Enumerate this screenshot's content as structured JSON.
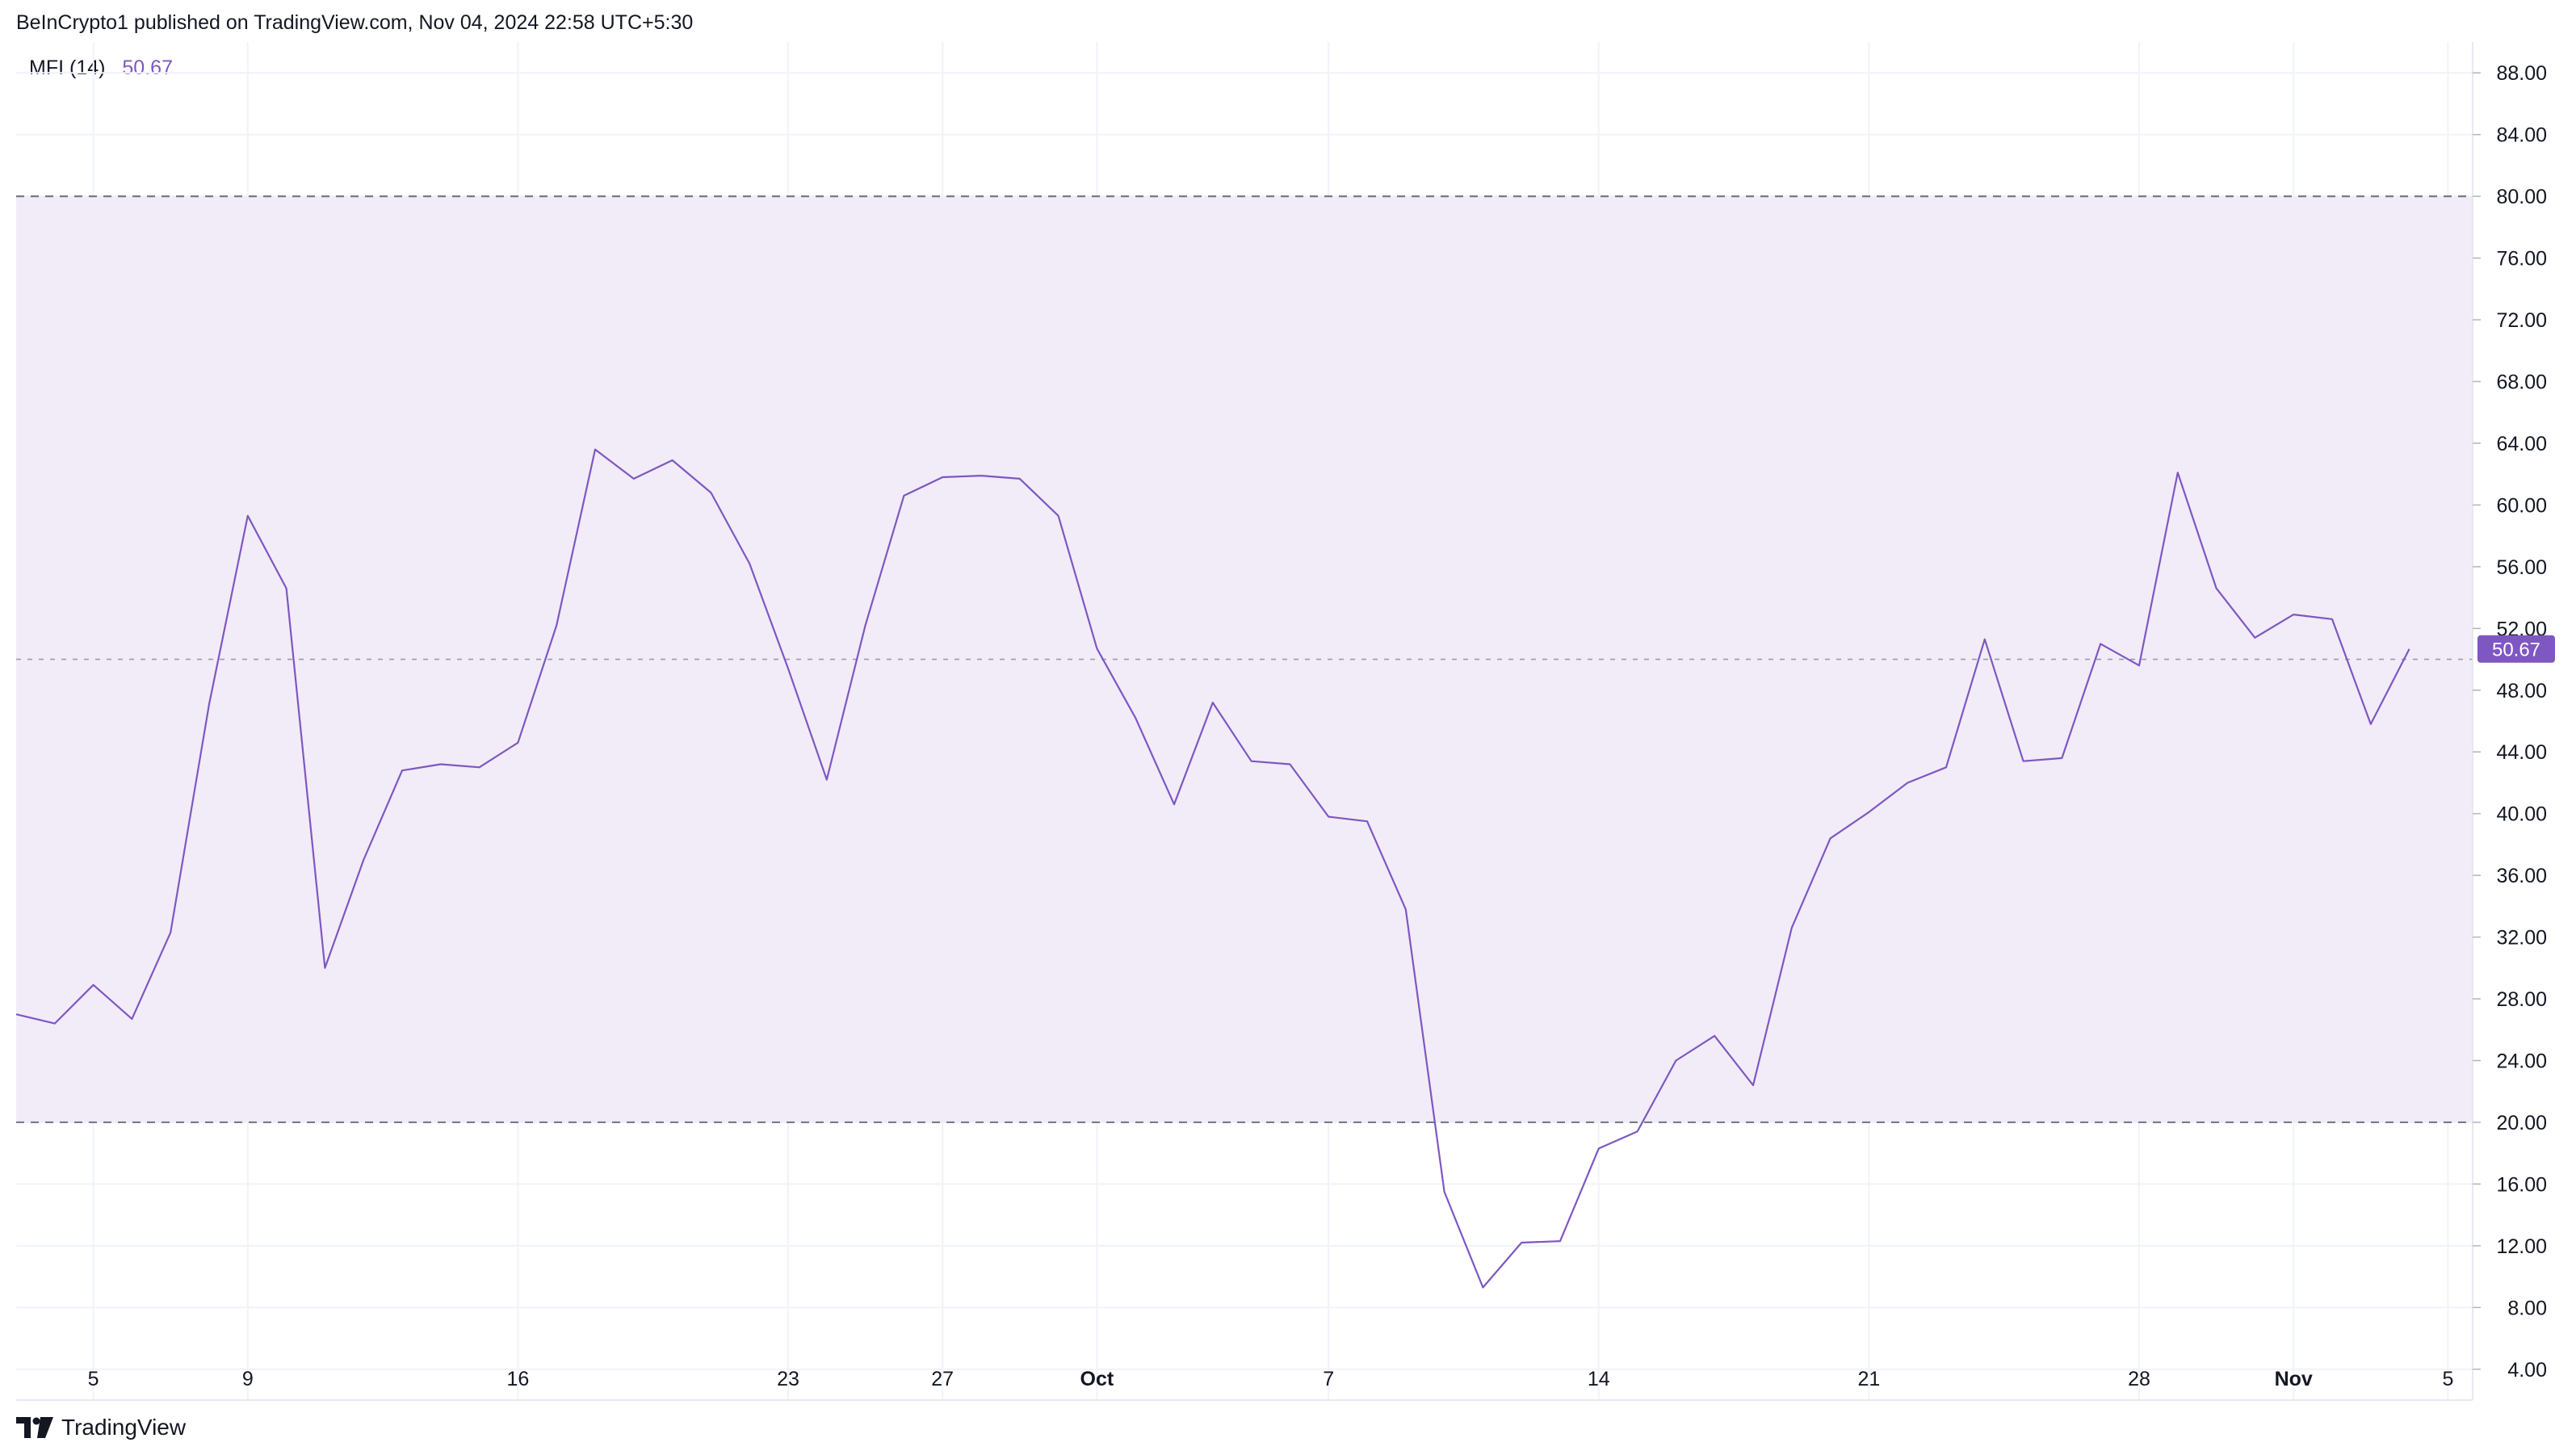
{
  "header": {
    "published_text": "BeInCrypto1 published on TradingView.com, Nov 04, 2024 22:58 UTC+5:30"
  },
  "legend": {
    "name": "MFI (14)",
    "value": "50.67"
  },
  "footer": {
    "brand": "TradingView",
    "logo_icon": "tradingview-logo-icon"
  },
  "colors": {
    "line": "#7e57c2",
    "band_fill": "#f1ecf8",
    "band_line": "#787b86",
    "grid": "#f0f3fa",
    "price_badge": "#7e57c2",
    "text": "#131722"
  },
  "chart_data": {
    "type": "line",
    "title": "",
    "xlabel": "",
    "ylabel": "",
    "ylim": [
      2,
      90
    ],
    "y_ticks": [
      "4.00",
      "8.00",
      "12.00",
      "16.00",
      "20.00",
      "24.00",
      "28.00",
      "32.00",
      "36.00",
      "40.00",
      "44.00",
      "48.00",
      "52.00",
      "56.00",
      "60.00",
      "64.00",
      "68.00",
      "72.00",
      "76.00",
      "80.00",
      "84.00",
      "88.00"
    ],
    "x_ticks": [
      {
        "label": "5",
        "index": 2,
        "bold": false
      },
      {
        "label": "9",
        "index": 6,
        "bold": false
      },
      {
        "label": "16",
        "index": 13,
        "bold": false
      },
      {
        "label": "23",
        "index": 20,
        "bold": false
      },
      {
        "label": "27",
        "index": 24,
        "bold": false
      },
      {
        "label": "Oct",
        "index": 28,
        "bold": true
      },
      {
        "label": "7",
        "index": 34,
        "bold": false
      },
      {
        "label": "14",
        "index": 41,
        "bold": false
      },
      {
        "label": "21",
        "index": 48,
        "bold": false
      },
      {
        "label": "28",
        "index": 55,
        "bold": false
      },
      {
        "label": "Nov",
        "index": 59,
        "bold": true
      },
      {
        "label": "5",
        "index": 63,
        "bold": false
      }
    ],
    "bands": {
      "upper": 80,
      "middle": 50,
      "lower": 20
    },
    "last_value_label": "50.67",
    "series": [
      {
        "values": [
          27.0,
          26.4,
          28.9,
          26.7,
          32.3,
          47.1,
          59.3,
          54.6,
          30.0,
          37.0,
          42.8,
          43.2,
          43.0,
          44.6,
          52.2,
          63.6,
          61.7,
          62.9,
          60.8,
          56.2,
          49.4,
          42.2,
          52.2,
          60.6,
          61.8,
          61.9,
          61.7,
          59.3,
          50.7,
          46.2,
          40.6,
          47.2,
          43.4,
          43.2,
          39.8,
          39.5,
          33.8,
          15.5,
          9.3,
          12.2,
          12.3,
          18.3,
          19.4,
          24.0,
          25.6,
          22.4,
          32.6,
          38.4,
          40.1,
          42.0,
          43.0,
          51.3,
          43.4,
          43.6,
          51.0,
          49.6,
          62.1,
          54.6,
          51.4,
          52.9,
          52.6,
          45.8,
          50.67
        ]
      }
    ]
  }
}
